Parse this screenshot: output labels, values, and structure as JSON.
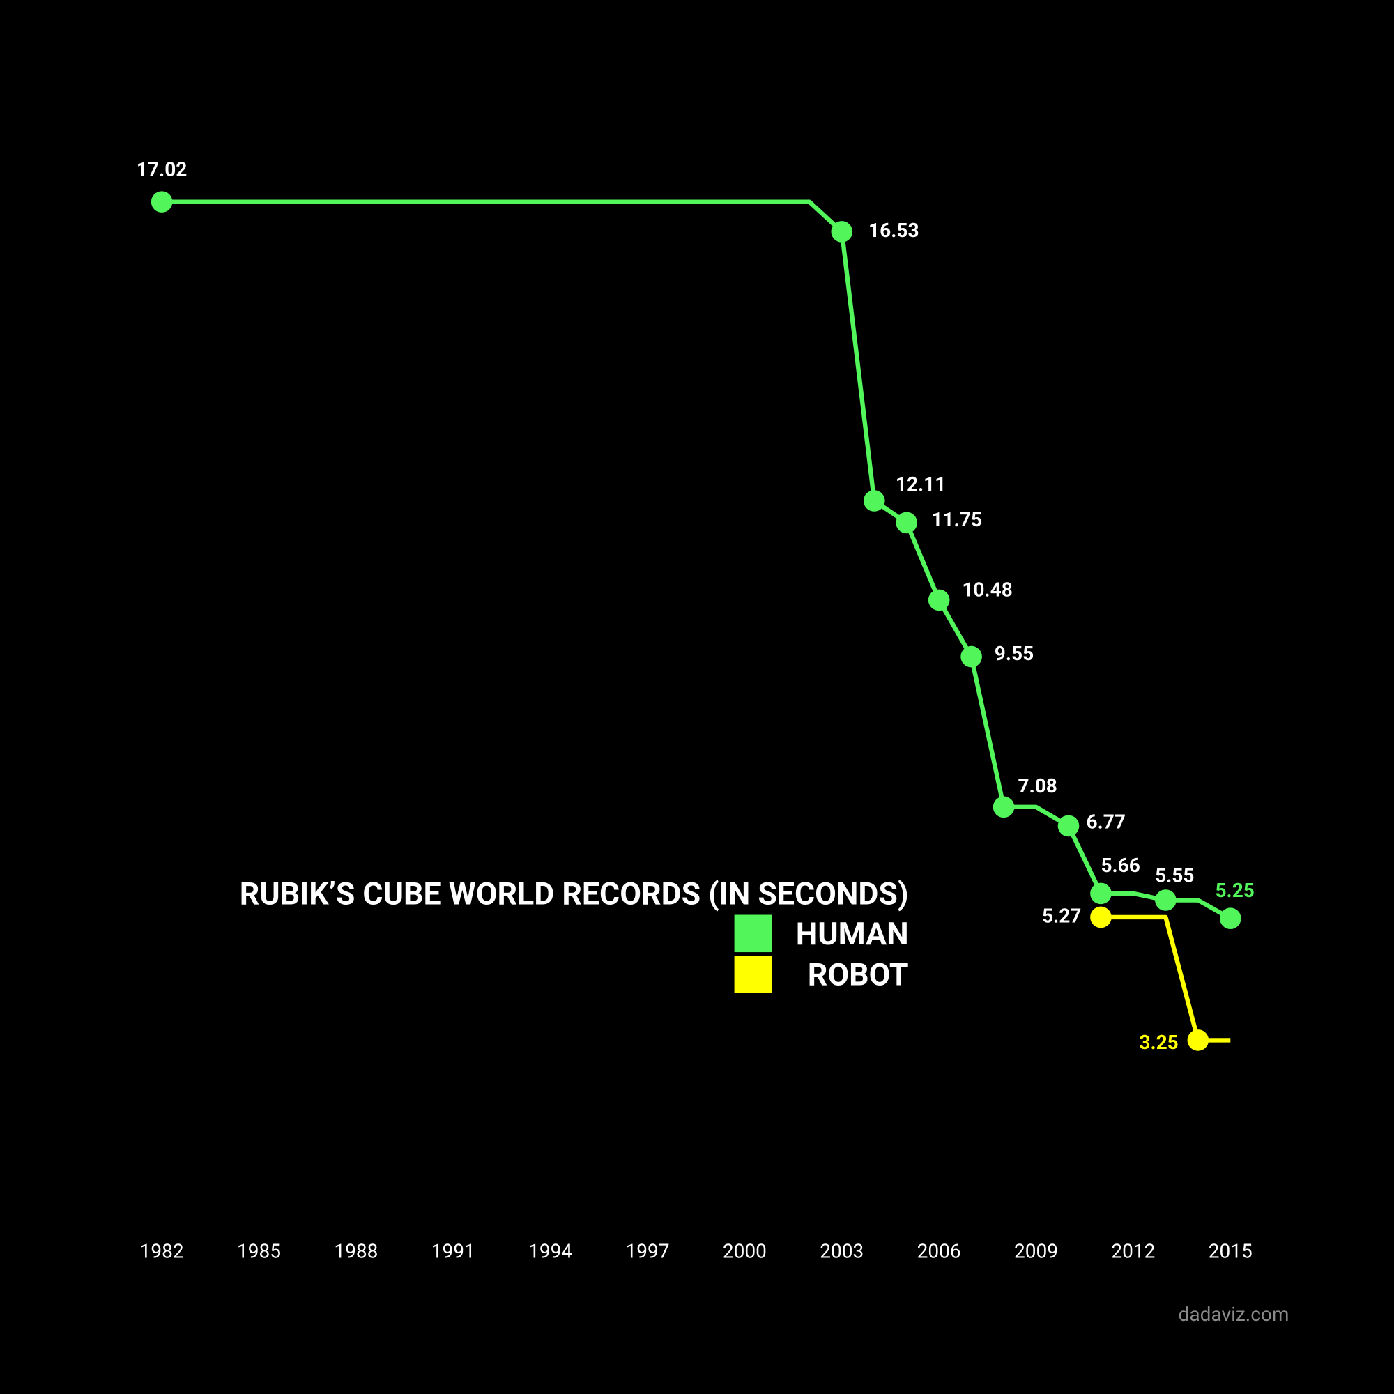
{
  "chart_data": {
    "type": "line",
    "title": "RUBIK’S CUBE WORLD RECORDS (IN SECONDS)",
    "source": "dadaviz.com",
    "xlim": [
      1982,
      2015
    ],
    "xticks": [
      1982,
      1985,
      1988,
      1991,
      1994,
      1997,
      2000,
      2003,
      2006,
      2009,
      2012,
      2015
    ],
    "ylim": [
      0,
      20
    ],
    "grid": false,
    "series": [
      {
        "name": "HUMAN",
        "color": "#52f55a",
        "x": [
          1982,
          2002,
          2003,
          2004,
          2005,
          2006,
          2007,
          2008,
          2009,
          2010,
          2011,
          2012,
          2013,
          2014,
          2015
        ],
        "values": [
          17.02,
          17.02,
          16.53,
          12.11,
          11.75,
          10.48,
          9.55,
          7.08,
          7.08,
          6.77,
          5.66,
          5.66,
          5.55,
          5.55,
          5.25
        ],
        "markers": [
          true,
          false,
          true,
          true,
          true,
          true,
          true,
          true,
          false,
          true,
          true,
          false,
          true,
          false,
          true
        ]
      },
      {
        "name": "ROBOT",
        "color": "#ffff00",
        "x": [
          2011,
          2013,
          2014,
          2015
        ],
        "values": [
          5.27,
          5.27,
          3.25,
          3.25
        ],
        "markers": [
          true,
          false,
          true,
          false
        ]
      }
    ]
  }
}
